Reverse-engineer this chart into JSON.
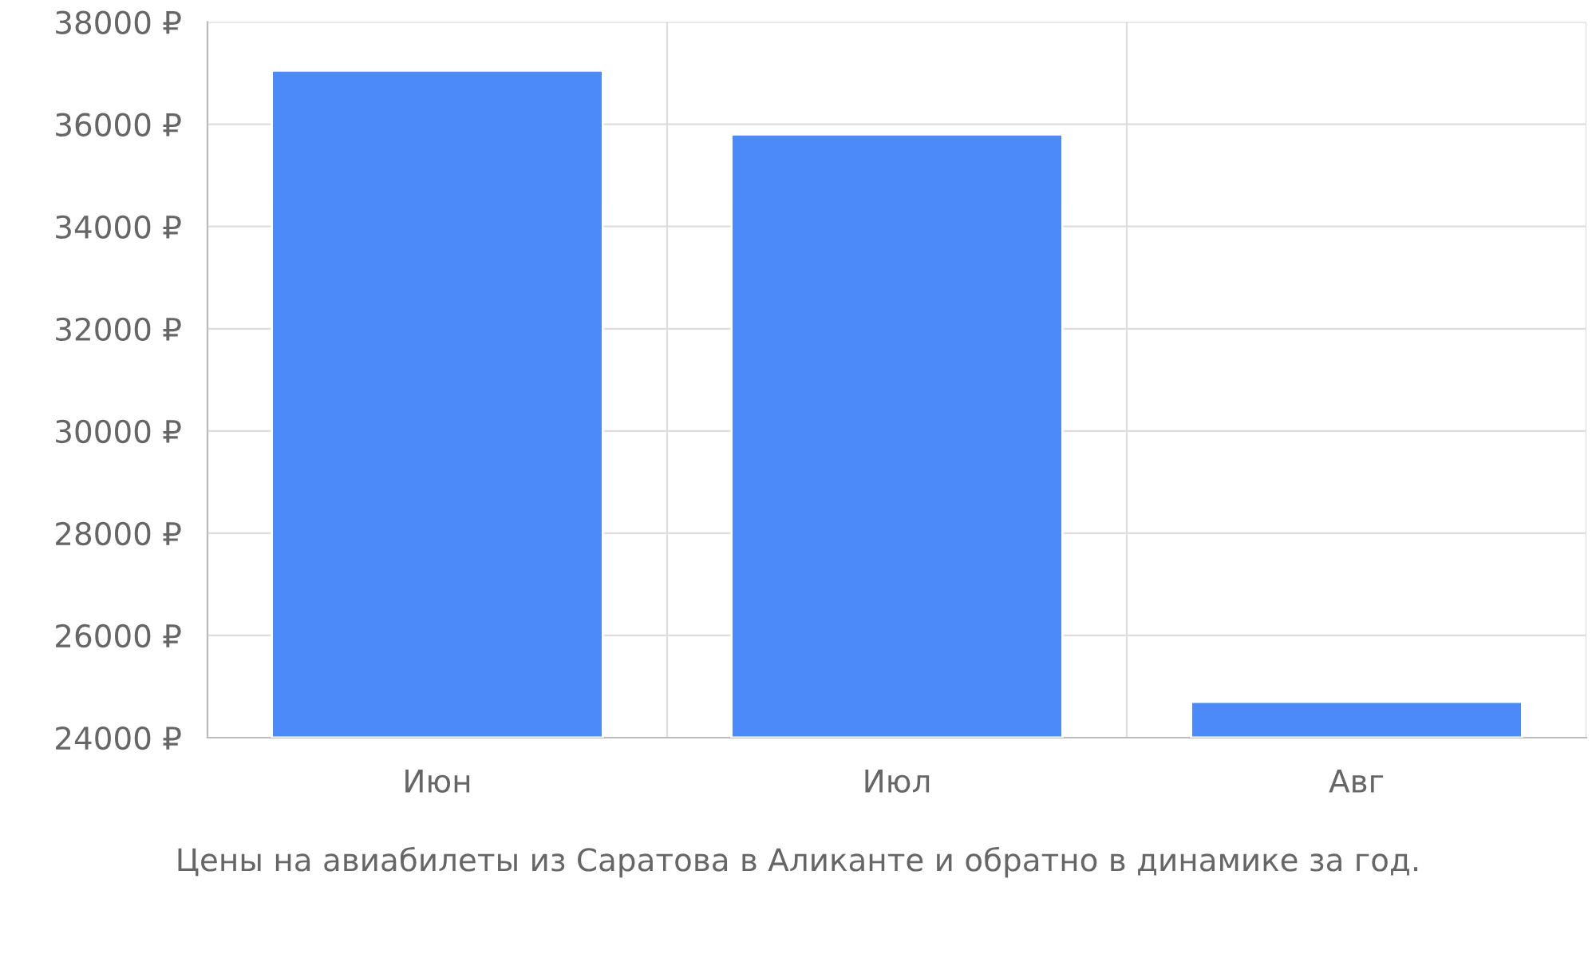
{
  "chart_data": {
    "type": "bar",
    "categories": [
      "Июн",
      "Июл",
      "Авг"
    ],
    "series": [
      {
        "color": "#4d8af9",
        "values": [
          37050,
          35800,
          24700
        ]
      }
    ],
    "ylim": [
      24000,
      38000
    ],
    "yticks": [
      {
        "value": 24000,
        "label": "24000 ₽"
      },
      {
        "value": 26000,
        "label": "26000 ₽"
      },
      {
        "value": 28000,
        "label": "28000 ₽"
      },
      {
        "value": 30000,
        "label": "30000 ₽"
      },
      {
        "value": 32000,
        "label": "32000 ₽"
      },
      {
        "value": 34000,
        "label": "34000 ₽"
      },
      {
        "value": 36000,
        "label": "36000 ₽"
      },
      {
        "value": 38000,
        "label": "38000 ₽"
      }
    ],
    "grid": true,
    "legend": false,
    "annotations": [
      "Цены на авиабилеты из Саратова в Аликанте и обратно в динамике за год."
    ]
  }
}
